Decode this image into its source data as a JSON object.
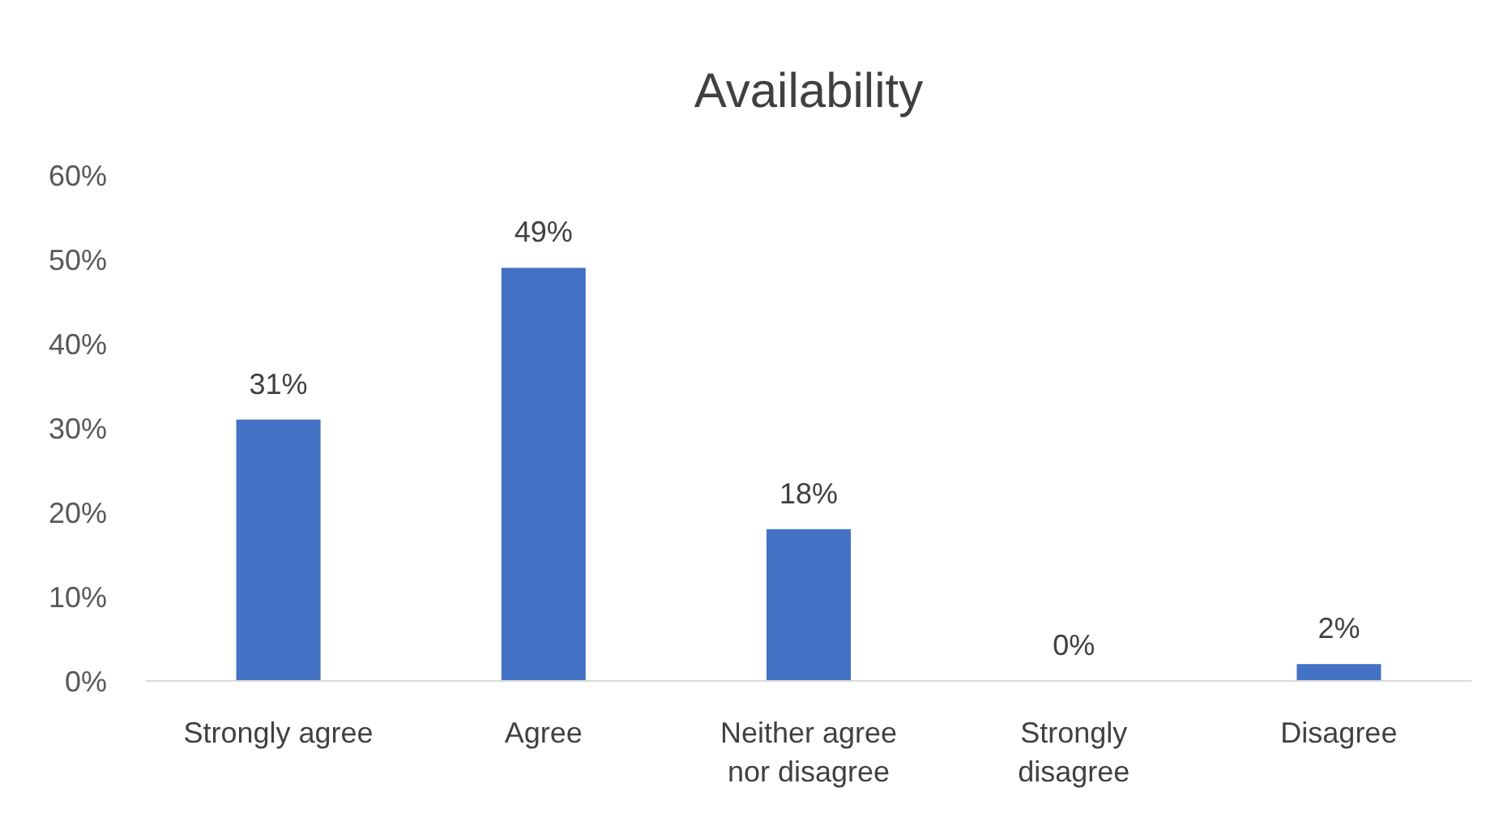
{
  "chart_data": {
    "type": "bar",
    "title": "Availability",
    "categories": [
      "Strongly agree",
      "Agree",
      "Neither agree nor disagree",
      "Strongly disagree",
      "Disagree"
    ],
    "values": [
      31,
      49,
      18,
      0,
      2
    ],
    "value_labels": [
      "31%",
      "49%",
      "18%",
      "0%",
      "2%"
    ],
    "color": "#4472c4",
    "ylim": [
      0,
      60
    ],
    "yticks": [
      {
        "value": 0,
        "label": "0%"
      },
      {
        "value": 10,
        "label": "10%"
      },
      {
        "value": 20,
        "label": "20%"
      },
      {
        "value": 30,
        "label": "30%"
      },
      {
        "value": 40,
        "label": "40%"
      },
      {
        "value": 50,
        "label": "50%"
      },
      {
        "value": 60,
        "label": "60%"
      }
    ],
    "grid": false
  }
}
